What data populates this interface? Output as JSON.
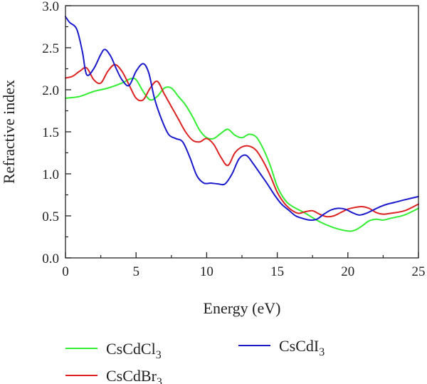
{
  "chart_data": {
    "type": "line",
    "xlabel": "Energy (eV)",
    "ylabel": "Refractive index",
    "xlim": [
      0,
      25
    ],
    "ylim": [
      0,
      3.0
    ],
    "xticks": [
      "0",
      "5",
      "10",
      "15",
      "20",
      "25"
    ],
    "yticks": [
      "0.0",
      "0.5",
      "1.0",
      "1.5",
      "2.0",
      "2.5",
      "3.0"
    ],
    "grid": false,
    "legend_position": "bottom",
    "series": [
      {
        "name": "CsCdCl",
        "subscript": "3",
        "color": "#33ee33",
        "x": [
          0,
          1,
          2,
          3,
          4,
          4.6,
          5,
          5.5,
          6,
          6.5,
          7,
          7.5,
          8,
          8.5,
          9,
          9.5,
          10,
          10.5,
          11,
          11.5,
          12,
          12.5,
          13,
          13.5,
          14,
          14.5,
          15,
          15.5,
          16,
          17,
          18,
          19,
          20,
          20.5,
          21,
          21.5,
          22,
          22.5,
          23,
          24,
          25
        ],
        "y": [
          1.9,
          1.92,
          1.98,
          2.02,
          2.08,
          2.13,
          2.12,
          1.98,
          1.88,
          1.92,
          2.02,
          2.02,
          1.92,
          1.82,
          1.68,
          1.52,
          1.43,
          1.42,
          1.48,
          1.53,
          1.46,
          1.43,
          1.47,
          1.44,
          1.3,
          1.1,
          0.85,
          0.7,
          0.62,
          0.53,
          0.43,
          0.36,
          0.32,
          0.33,
          0.38,
          0.44,
          0.46,
          0.45,
          0.47,
          0.51,
          0.59
        ]
      },
      {
        "name": "CsCdBr",
        "subscript": "3",
        "color": "#dd2222",
        "x": [
          0,
          0.5,
          1,
          1.5,
          2,
          2.5,
          3,
          3.5,
          4,
          4.5,
          5,
          5.5,
          6,
          6.5,
          7,
          7.5,
          8,
          8.5,
          9,
          9.5,
          10,
          10.5,
          11,
          11.5,
          12,
          12.5,
          13,
          13.5,
          14,
          14.5,
          15,
          15.5,
          16,
          16.5,
          17,
          17.5,
          18,
          18.5,
          19,
          19.5,
          20,
          20.5,
          21,
          21.5,
          22,
          22.5,
          23,
          24,
          25
        ],
        "y": [
          2.14,
          2.16,
          2.22,
          2.26,
          2.12,
          2.08,
          2.22,
          2.3,
          2.22,
          2.06,
          1.9,
          1.88,
          2.02,
          2.1,
          1.95,
          1.8,
          1.65,
          1.5,
          1.4,
          1.38,
          1.42,
          1.35,
          1.2,
          1.1,
          1.25,
          1.32,
          1.33,
          1.28,
          1.15,
          0.98,
          0.78,
          0.65,
          0.57,
          0.53,
          0.55,
          0.56,
          0.52,
          0.49,
          0.5,
          0.54,
          0.58,
          0.6,
          0.61,
          0.59,
          0.54,
          0.52,
          0.53,
          0.56,
          0.64
        ]
      },
      {
        "name": "CsCdI",
        "subscript": "3",
        "color": "#1a1acc",
        "x": [
          0,
          0.3,
          0.8,
          1.2,
          1.5,
          2,
          2.5,
          2.8,
          3.2,
          3.6,
          4,
          4.5,
          5,
          5.5,
          5.9,
          6.3,
          6.8,
          7.3,
          7.8,
          8.3,
          8.8,
          9.3,
          9.8,
          10.3,
          10.8,
          11.3,
          11.8,
          12.3,
          12.8,
          13.3,
          13.8,
          14.3,
          14.8,
          15.3,
          15.8,
          16.3,
          16.8,
          17.3,
          17.8,
          18.3,
          18.8,
          19.3,
          19.8,
          20.3,
          20.8,
          21.3,
          21.8,
          22.3,
          22.8,
          23.3,
          24,
          25
        ],
        "y": [
          2.87,
          2.8,
          2.72,
          2.45,
          2.18,
          2.25,
          2.42,
          2.48,
          2.4,
          2.25,
          2.12,
          2.05,
          2.22,
          2.31,
          2.2,
          1.9,
          1.65,
          1.47,
          1.42,
          1.38,
          1.2,
          0.98,
          0.89,
          0.89,
          0.88,
          0.88,
          1.0,
          1.18,
          1.22,
          1.12,
          1.0,
          0.88,
          0.75,
          0.64,
          0.57,
          0.5,
          0.47,
          0.45,
          0.46,
          0.52,
          0.57,
          0.59,
          0.58,
          0.54,
          0.51,
          0.53,
          0.57,
          0.61,
          0.64,
          0.66,
          0.69,
          0.73
        ]
      }
    ]
  }
}
